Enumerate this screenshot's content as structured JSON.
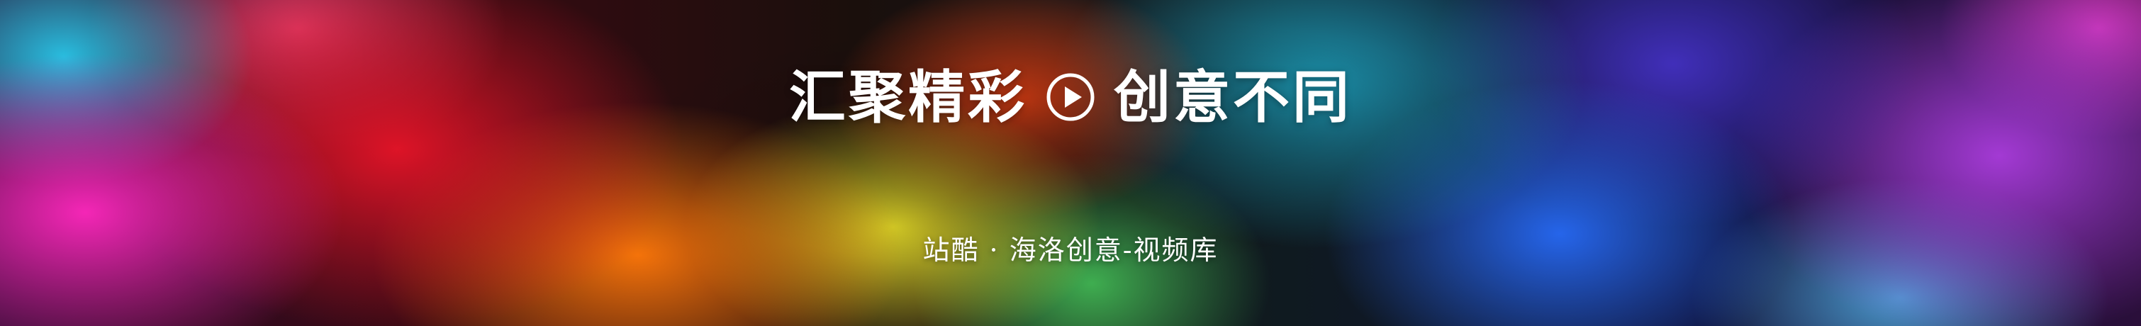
{
  "banner": {
    "title_left": "汇聚精彩",
    "title_right": "创意不同",
    "subtitle": "站酷 · 海洛创意-视频库",
    "play_icon": "play-circle-icon",
    "colors": {
      "text": "#ffffff"
    }
  }
}
